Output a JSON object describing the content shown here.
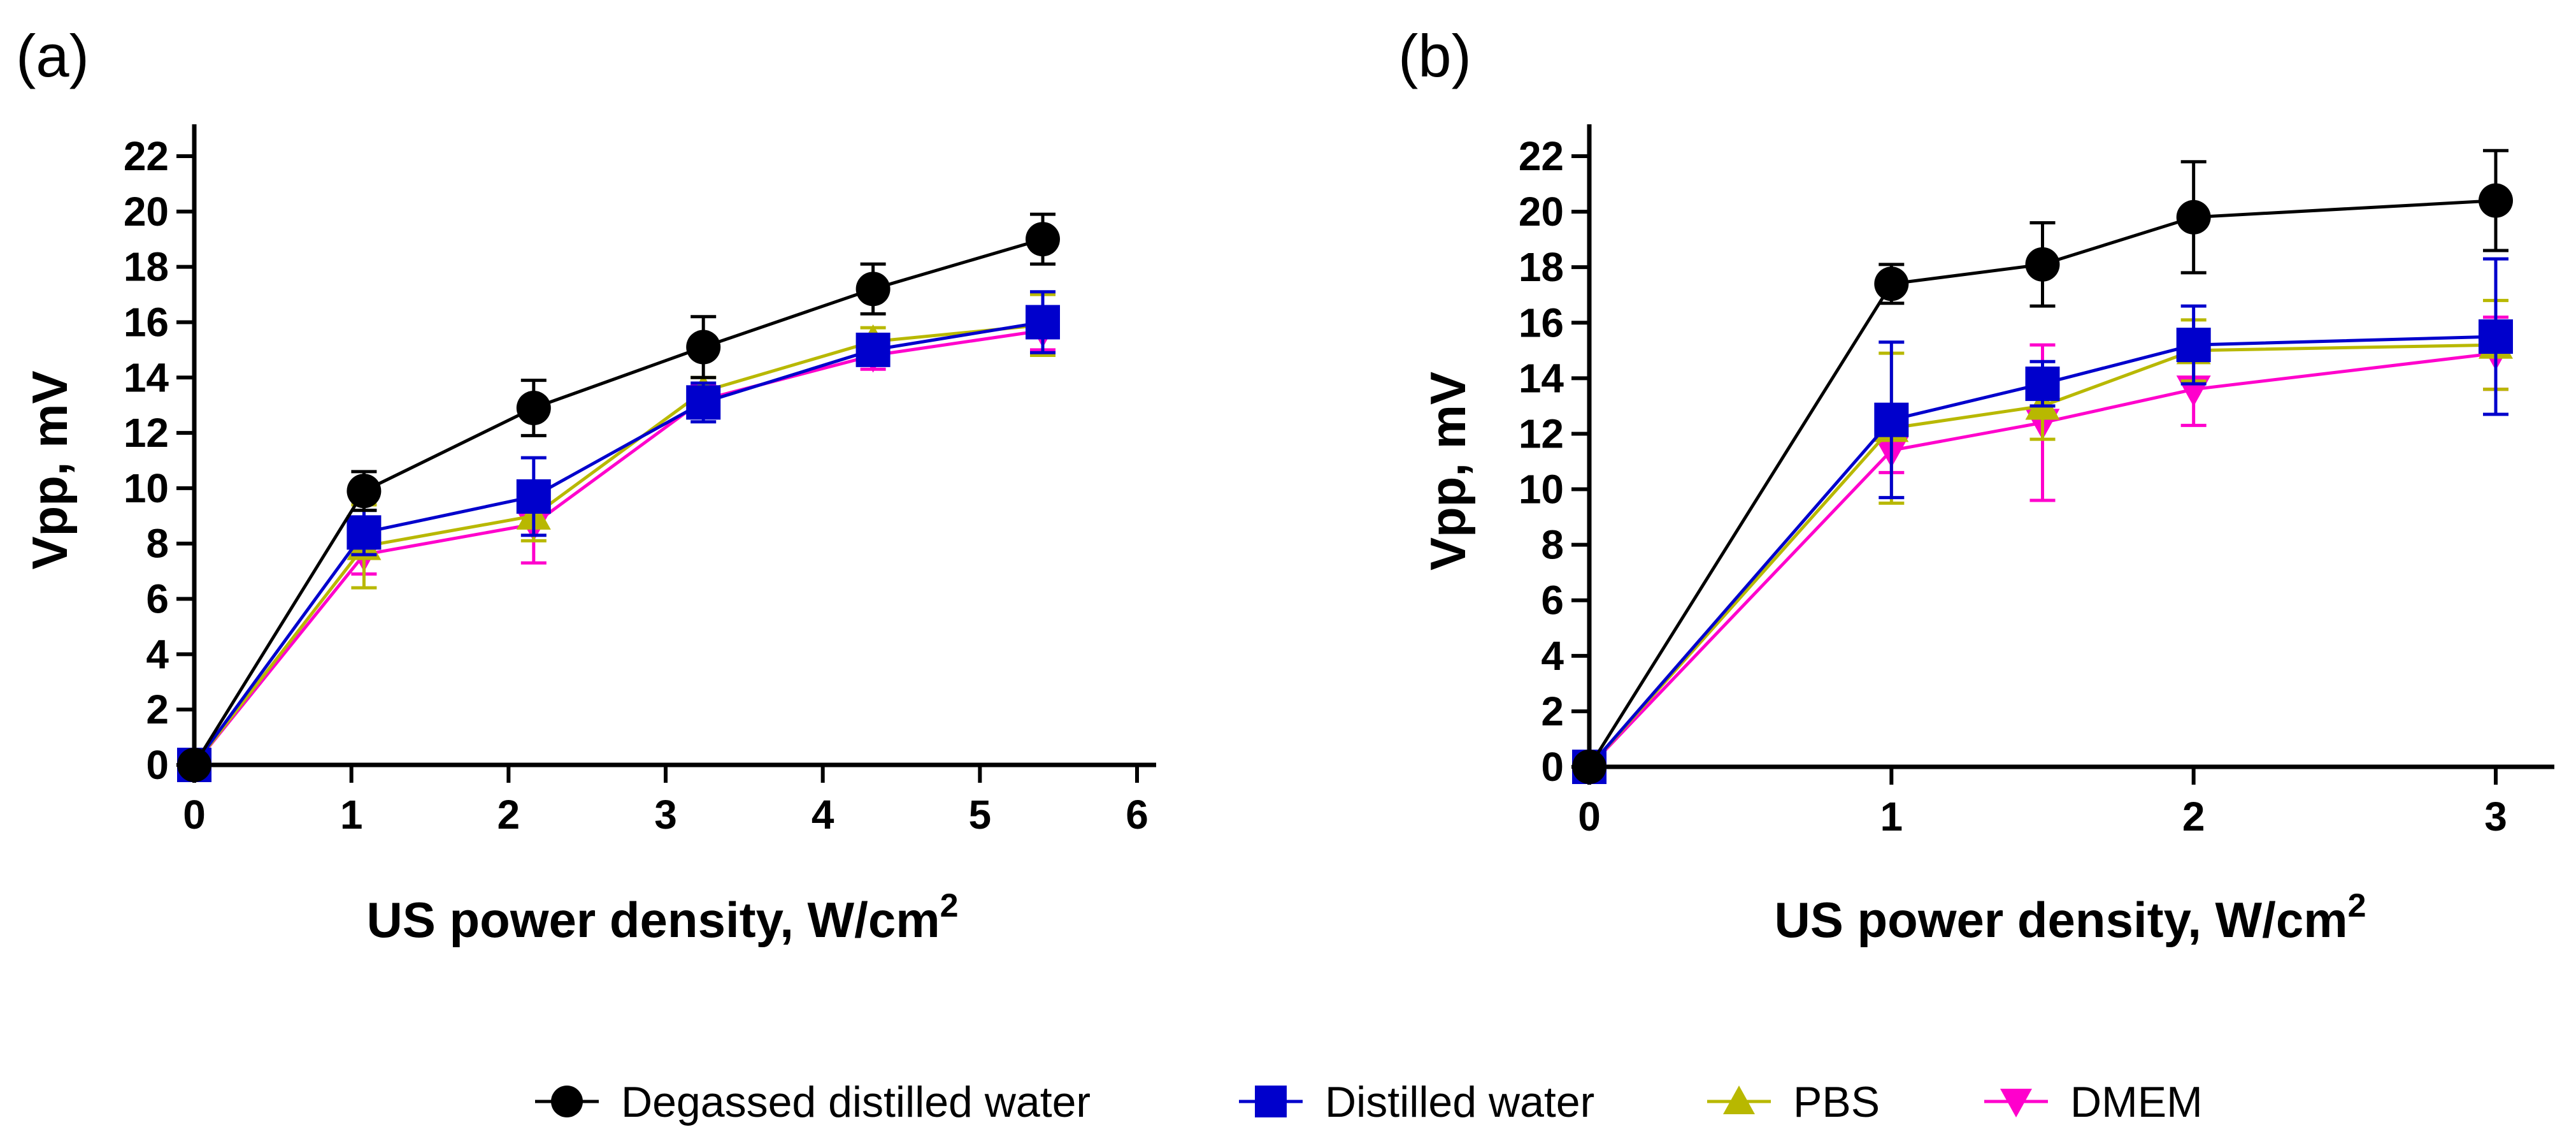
{
  "chart_data": [
    {
      "panel_label": "(a)",
      "type": "line",
      "xlabel_main": "US power density, W/cm",
      "xlabel_sup": "2",
      "ylabel": "Vpp, mV",
      "xlim": [
        0,
        6
      ],
      "ylim": [
        0,
        23
      ],
      "xticks": [
        0,
        1,
        2,
        3,
        4,
        5,
        6
      ],
      "yticks": [
        0,
        2,
        4,
        6,
        8,
        10,
        12,
        14,
        16,
        18,
        20,
        22
      ],
      "series": [
        {
          "name": "Degassed distilled water",
          "x": [
            0,
            1.08,
            2.16,
            3.24,
            4.32,
            5.4
          ],
          "y": [
            0,
            9.9,
            12.9,
            15.1,
            17.2,
            19.0
          ],
          "err": [
            0,
            0.7,
            1.0,
            1.1,
            0.9,
            0.9
          ]
        },
        {
          "name": "Distilled water",
          "x": [
            0,
            1.08,
            2.16,
            3.24,
            4.32,
            5.4
          ],
          "y": [
            0,
            8.4,
            9.7,
            13.1,
            15.0,
            16.0
          ],
          "err": [
            0,
            0.8,
            1.4,
            0.7,
            0.5,
            1.1
          ]
        },
        {
          "name": "PBS",
          "x": [
            0,
            1.08,
            2.16,
            3.24,
            4.32,
            5.4
          ],
          "y": [
            0,
            7.9,
            9.0,
            13.5,
            15.3,
            15.9
          ],
          "err": [
            0,
            1.5,
            0.9,
            0.5,
            0.5,
            1.1
          ]
        },
        {
          "name": "DMEM",
          "x": [
            0,
            1.08,
            2.16,
            3.24,
            4.32,
            5.4
          ],
          "y": [
            0,
            7.6,
            8.7,
            13.2,
            14.8,
            15.7
          ],
          "err": [
            0,
            0.7,
            1.4,
            0.5,
            0.5,
            0.7
          ]
        }
      ]
    },
    {
      "panel_label": "(b)",
      "type": "line",
      "xlabel_main": "US power density, W/cm",
      "xlabel_sup": "2",
      "ylabel": "Vpp, mV",
      "xlim": [
        0,
        3.2
      ],
      "ylim": [
        0,
        23
      ],
      "xticks": [
        0,
        1,
        2,
        3
      ],
      "yticks": [
        0,
        2,
        4,
        6,
        8,
        10,
        12,
        14,
        16,
        18,
        20,
        22
      ],
      "series": [
        {
          "name": "Degassed distilled water",
          "x": [
            0,
            1,
            1.5,
            2,
            3
          ],
          "y": [
            0,
            17.4,
            18.1,
            19.8,
            20.4
          ],
          "err": [
            0,
            0.7,
            1.5,
            2.0,
            1.8
          ]
        },
        {
          "name": "Distilled water",
          "x": [
            0,
            1,
            1.5,
            2,
            3
          ],
          "y": [
            0,
            12.5,
            13.8,
            15.2,
            15.5
          ],
          "err": [
            0,
            2.8,
            0.8,
            1.4,
            2.8
          ]
        },
        {
          "name": "PBS",
          "x": [
            0,
            1,
            1.5,
            2,
            3
          ],
          "y": [
            0,
            12.2,
            13.0,
            15.0,
            15.2
          ],
          "err": [
            0,
            2.7,
            1.2,
            1.1,
            1.6
          ]
        },
        {
          "name": "DMEM",
          "x": [
            0,
            1,
            1.5,
            2,
            3
          ],
          "y": [
            0,
            11.4,
            12.4,
            13.6,
            14.9
          ],
          "err": [
            0,
            0.8,
            2.8,
            1.3,
            1.3
          ]
        }
      ]
    }
  ],
  "legend": [
    {
      "name": "Degassed distilled water",
      "color": "#000000",
      "marker": "circle"
    },
    {
      "name": "Distilled water",
      "color": "#0000cc",
      "marker": "square"
    },
    {
      "name": "PBS",
      "color": "#b8b800",
      "marker": "triangle-up"
    },
    {
      "name": "DMEM",
      "color": "#ff00cc",
      "marker": "triangle-down"
    }
  ]
}
